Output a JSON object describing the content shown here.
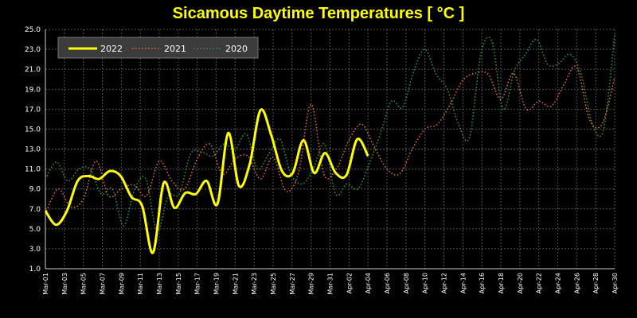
{
  "chart_data": {
    "type": "line",
    "title": "Sicamous Daytime Temperatures [ °C ]",
    "xlabel": "",
    "ylabel": "",
    "ylim": [
      1.0,
      25.0
    ],
    "yticks": [
      "1.0",
      "3.0",
      "5.0",
      "7.0",
      "9.0",
      "11.0",
      "13.0",
      "15.0",
      "17.0",
      "19.0",
      "21.0",
      "23.0",
      "25.0"
    ],
    "xticks": [
      "Mar-01",
      "Mar-03",
      "Mar-05",
      "Mar-07",
      "Mar-09",
      "Mar-11",
      "Mar-13",
      "Mar-15",
      "Mar-17",
      "Mar-19",
      "Mar-21",
      "Mar-23",
      "Mar-25",
      "Mar-27",
      "Mar-29",
      "Mar-31",
      "Apr-02",
      "Apr-04",
      "Apr-06",
      "Apr-08",
      "Apr-10",
      "Apr-12",
      "Apr-14",
      "Apr-16",
      "Apr-18",
      "Apr-20",
      "Apr-22",
      "Apr-24",
      "Apr-26",
      "Apr-28",
      "Apr-30"
    ],
    "grid": true,
    "legend": "top-left",
    "colors": {
      "2022": "#ffff00",
      "2021": "#e8743b",
      "2020": "#2e9e3e",
      "grid": "#555555",
      "axis": "#cccccc"
    },
    "series": [
      {
        "name": "2022",
        "style": "solid",
        "values": [
          6.8,
          5.4,
          6.8,
          9.8,
          10.3,
          10.0,
          10.8,
          10.3,
          8.2,
          7.3,
          2.6,
          9.6,
          7.1,
          8.6,
          8.5,
          9.8,
          7.5,
          14.6,
          9.3,
          11.5,
          16.9,
          14.4,
          10.8,
          10.6,
          13.9,
          10.6,
          12.6,
          10.6,
          10.4,
          14.0,
          12.3
        ]
      },
      {
        "name": "2021",
        "style": "dotted",
        "values": [
          6.5,
          9.0,
          7.2,
          8.0,
          11.8,
          8.3,
          9.0,
          9.4,
          8.3,
          11.8,
          9.8,
          9.0,
          12.0,
          13.5,
          10.5,
          12.0,
          12.3,
          10.0,
          12.2,
          8.8,
          10.6,
          17.5,
          10.5,
          11.0,
          13.9,
          15.5,
          13.2,
          11.0,
          10.5,
          13.0,
          15.0,
          15.5,
          17.5,
          19.9,
          20.6,
          20.5,
          18.0,
          20.6,
          17.0,
          17.8,
          17.3,
          19.5,
          21.2,
          16.0,
          15.5,
          20.2
        ]
      },
      {
        "name": "2020",
        "style": "dotted",
        "values": [
          10.0,
          11.7,
          9.8,
          11.0,
          11.0,
          8.5,
          9.0,
          5.3,
          9.0,
          10.0,
          4.8,
          8.3,
          8.5,
          12.5,
          12.7,
          12.3,
          13.5,
          13.0,
          14.5,
          11.0,
          12.5,
          14.0,
          10.5,
          9.5,
          11.0,
          13.5,
          8.5,
          9.5,
          9.0,
          11.5,
          14.5,
          17.8,
          17.2,
          20.8,
          23.0,
          20.5,
          19.0,
          15.5,
          14.2,
          22.5,
          23.8,
          17.0,
          20.8,
          22.5,
          24.0,
          21.5,
          21.6,
          22.5,
          20.5,
          15.5,
          15.0,
          24.5
        ]
      }
    ]
  }
}
